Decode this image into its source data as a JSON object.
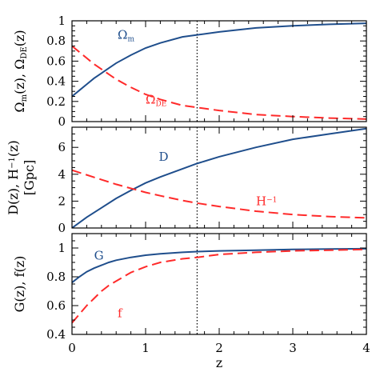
{
  "chart_data": {
    "type": "line",
    "x_axis": {
      "label": "z",
      "range": [
        0,
        4
      ],
      "ticks": [
        0,
        1,
        2,
        3,
        4
      ]
    },
    "marker_line_x": 1.7,
    "colors": {
      "solid": "#1f4e8c",
      "dashed": "#ff2a2a"
    },
    "panels": [
      {
        "ylabel_parts": [
          {
            "t": "Ω"
          },
          {
            "t": "m",
            "sub": true
          },
          {
            "t": "(z), Ω"
          },
          {
            "t": "DE",
            "sub": true
          },
          {
            "t": "(z)"
          }
        ],
        "ylim": [
          0,
          1
        ],
        "yticks": [
          0,
          0.2,
          0.4,
          0.6,
          0.8,
          1
        ],
        "ytick_labels": [
          "0",
          "0.2",
          "0.4",
          "0.6",
          "0.8",
          "1"
        ],
        "series": [
          {
            "name": "Ωm",
            "style": "solid",
            "label_parts": [
              {
                "t": "Ω"
              },
              {
                "t": "m",
                "sub": true
              }
            ],
            "x": [
              0,
              0.1,
              0.2,
              0.3,
              0.4,
              0.5,
              0.6,
              0.8,
              1.0,
              1.2,
              1.5,
              1.7,
              2.0,
              2.5,
              3.0,
              3.5,
              4.0
            ],
            "y": [
              0.25,
              0.31,
              0.37,
              0.43,
              0.48,
              0.53,
              0.58,
              0.66,
              0.73,
              0.78,
              0.84,
              0.86,
              0.89,
              0.93,
              0.95,
              0.965,
              0.975
            ]
          },
          {
            "name": "ΩDE",
            "style": "dashed",
            "label_parts": [
              {
                "t": "Ω"
              },
              {
                "t": "DE",
                "sub": true
              }
            ],
            "x": [
              0,
              0.1,
              0.2,
              0.3,
              0.4,
              0.5,
              0.6,
              0.8,
              1.0,
              1.2,
              1.5,
              1.7,
              2.0,
              2.5,
              3.0,
              3.5,
              4.0
            ],
            "y": [
              0.75,
              0.69,
              0.63,
              0.57,
              0.52,
              0.47,
              0.42,
              0.34,
              0.27,
              0.22,
              0.16,
              0.14,
              0.11,
              0.07,
              0.05,
              0.035,
              0.025
            ]
          }
        ]
      },
      {
        "ylabel_parts": [
          {
            "t": "D(z),  H"
          },
          {
            "t": "−1",
            "sup": true
          },
          {
            "t": "(z)"
          }
        ],
        "ylabel2": "[Gpc]",
        "ylim": [
          0,
          7.5
        ],
        "yticks": [
          0,
          2,
          4,
          6
        ],
        "ytick_labels": [
          "0",
          "2",
          "4",
          "6"
        ],
        "series": [
          {
            "name": "D",
            "style": "solid",
            "label_parts": [
              {
                "t": "D"
              }
            ],
            "x": [
              0,
              0.2,
              0.4,
              0.6,
              0.8,
              1.0,
              1.2,
              1.5,
              1.7,
              2.0,
              2.5,
              3.0,
              3.5,
              4.0
            ],
            "y": [
              0,
              0.8,
              1.5,
              2.2,
              2.8,
              3.35,
              3.8,
              4.4,
              4.8,
              5.3,
              6.0,
              6.6,
              7.0,
              7.4
            ]
          },
          {
            "name": "H−1",
            "style": "dashed",
            "label_parts": [
              {
                "t": "H"
              },
              {
                "t": "−1",
                "sup": true
              }
            ],
            "x": [
              0,
              0.2,
              0.4,
              0.6,
              0.8,
              1.0,
              1.2,
              1.5,
              1.7,
              2.0,
              2.5,
              3.0,
              3.5,
              4.0
            ],
            "y": [
              4.3,
              3.95,
              3.6,
              3.25,
              2.95,
              2.65,
              2.4,
              2.05,
              1.85,
              1.6,
              1.25,
              1.0,
              0.85,
              0.75
            ]
          }
        ]
      },
      {
        "ylabel_parts": [
          {
            "t": "G(z),  f(z)"
          }
        ],
        "ylim": [
          0.4,
          1.1
        ],
        "yticks": [
          0.4,
          0.6,
          0.8,
          1
        ],
        "ytick_labels": [
          "0.4",
          "0.6",
          "0.8",
          "1"
        ],
        "series": [
          {
            "name": "G",
            "style": "solid",
            "label_parts": [
              {
                "t": "G"
              }
            ],
            "x": [
              0,
              0.1,
              0.2,
              0.3,
              0.4,
              0.5,
              0.6,
              0.8,
              1.0,
              1.2,
              1.5,
              1.7,
              2.0,
              2.5,
              3.0,
              3.5,
              4.0
            ],
            "y": [
              0.76,
              0.8,
              0.835,
              0.86,
              0.88,
              0.9,
              0.915,
              0.935,
              0.95,
              0.96,
              0.97,
              0.975,
              0.98,
              0.985,
              0.99,
              0.993,
              0.995
            ]
          },
          {
            "name": "f",
            "style": "dashed",
            "label_parts": [
              {
                "t": "f"
              }
            ],
            "x": [
              0,
              0.1,
              0.2,
              0.3,
              0.4,
              0.5,
              0.6,
              0.8,
              1.0,
              1.2,
              1.5,
              1.7,
              2.0,
              2.5,
              3.0,
              3.5,
              4.0
            ],
            "y": [
              0.48,
              0.54,
              0.6,
              0.65,
              0.7,
              0.74,
              0.77,
              0.83,
              0.87,
              0.9,
              0.925,
              0.935,
              0.955,
              0.97,
              0.98,
              0.985,
              0.99
            ]
          }
        ]
      }
    ]
  }
}
